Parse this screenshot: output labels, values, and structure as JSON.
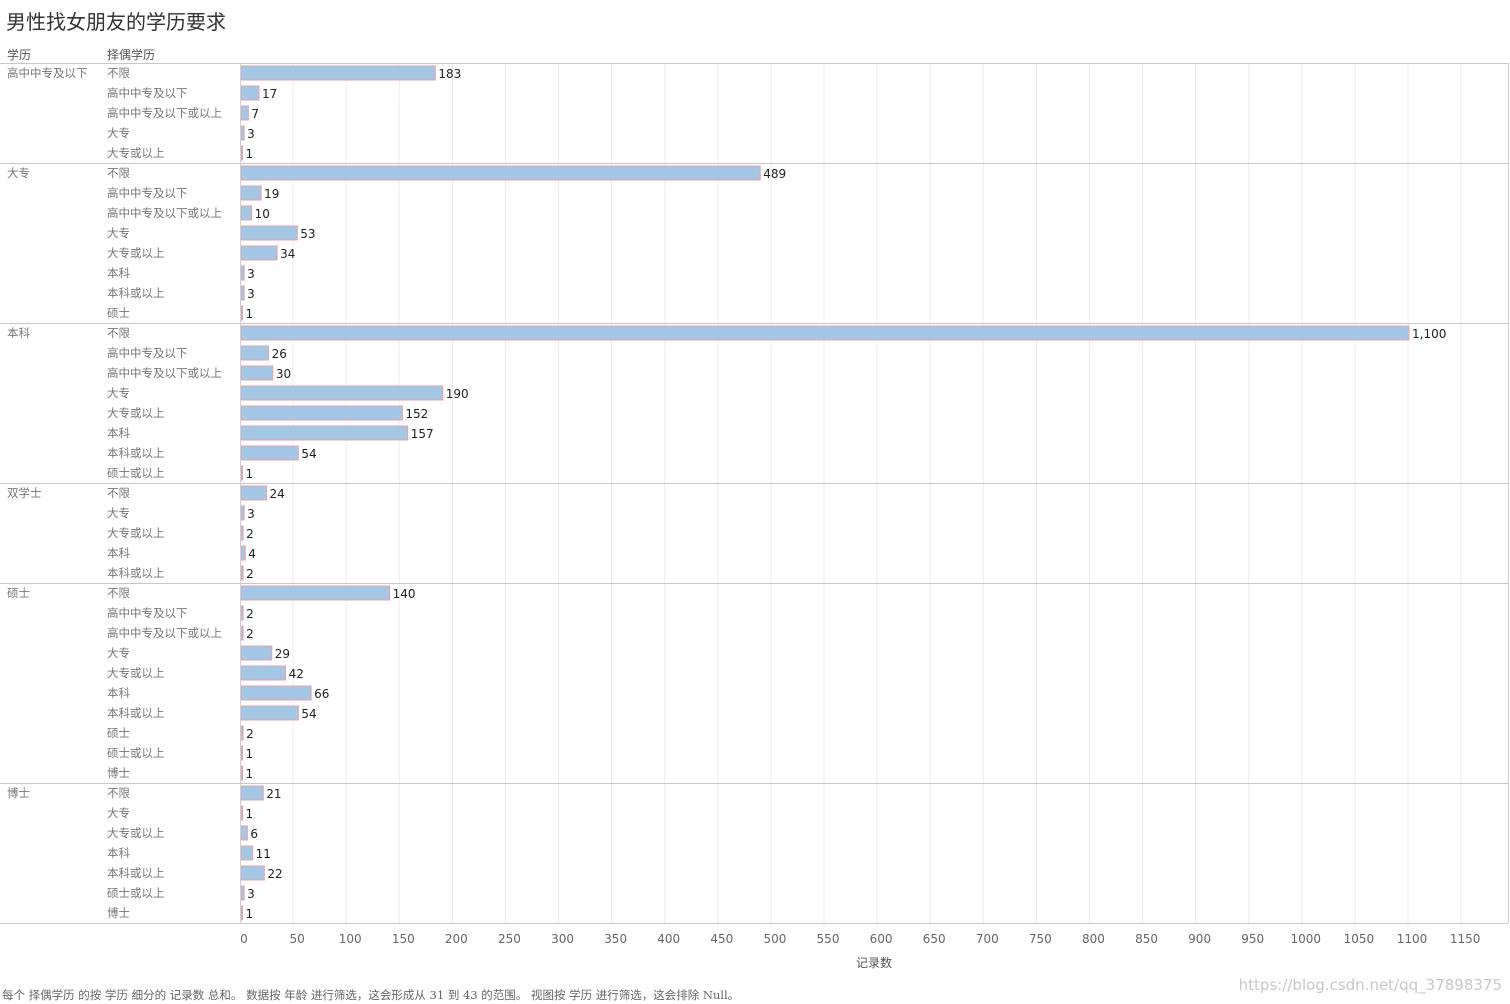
{
  "title": "男性找女朋友的学历要求",
  "headers": {
    "education": "学历",
    "spouse_education": "择偶学历"
  },
  "footnote": "每个 择偶学历 的按 学历 细分的 记录数 总和。 数据按 年龄 进行筛选，这会形成从 31 到 43 的范围。 视图按 学历 进行筛选，这会排除 Null。",
  "watermark": "https://blog.csdn.net/qq_37898375",
  "colors": {
    "bar_fill": "#a3c8e6",
    "bar_stroke": "#e8a0ac",
    "gridline": "#ececec",
    "separator": "#c8c8c8"
  },
  "chart_data": {
    "type": "bar",
    "orientation": "horizontal",
    "title": "男性找女朋友的学历要求",
    "xlabel": "记录数",
    "xlim": [
      0,
      1175
    ],
    "xticks": [
      0,
      50,
      100,
      150,
      200,
      250,
      300,
      350,
      400,
      450,
      500,
      550,
      600,
      650,
      700,
      750,
      800,
      850,
      900,
      950,
      1000,
      1050,
      1100,
      1150
    ],
    "grid": true,
    "groups": [
      {
        "name": "高中中专及以下",
        "rows": [
          {
            "label": "不限",
            "value": 183,
            "display": "183"
          },
          {
            "label": "高中中专及以下",
            "value": 17,
            "display": "17"
          },
          {
            "label": "高中中专及以下或以上",
            "value": 7,
            "display": "7"
          },
          {
            "label": "大专",
            "value": 3,
            "display": "3"
          },
          {
            "label": "大专或以上",
            "value": 1,
            "display": "1"
          }
        ]
      },
      {
        "name": "大专",
        "rows": [
          {
            "label": "不限",
            "value": 489,
            "display": "489"
          },
          {
            "label": "高中中专及以下",
            "value": 19,
            "display": "19"
          },
          {
            "label": "高中中专及以下或以上",
            "value": 10,
            "display": "10"
          },
          {
            "label": "大专",
            "value": 53,
            "display": "53"
          },
          {
            "label": "大专或以上",
            "value": 34,
            "display": "34"
          },
          {
            "label": "本科",
            "value": 3,
            "display": "3"
          },
          {
            "label": "本科或以上",
            "value": 3,
            "display": "3"
          },
          {
            "label": "硕士",
            "value": 1,
            "display": "1"
          }
        ]
      },
      {
        "name": "本科",
        "rows": [
          {
            "label": "不限",
            "value": 1100,
            "display": "1,100"
          },
          {
            "label": "高中中专及以下",
            "value": 26,
            "display": "26"
          },
          {
            "label": "高中中专及以下或以上",
            "value": 30,
            "display": "30"
          },
          {
            "label": "大专",
            "value": 190,
            "display": "190"
          },
          {
            "label": "大专或以上",
            "value": 152,
            "display": "152"
          },
          {
            "label": "本科",
            "value": 157,
            "display": "157"
          },
          {
            "label": "本科或以上",
            "value": 54,
            "display": "54"
          },
          {
            "label": "硕士或以上",
            "value": 1,
            "display": "1"
          }
        ]
      },
      {
        "name": "双学士",
        "rows": [
          {
            "label": "不限",
            "value": 24,
            "display": "24"
          },
          {
            "label": "大专",
            "value": 3,
            "display": "3"
          },
          {
            "label": "大专或以上",
            "value": 2,
            "display": "2"
          },
          {
            "label": "本科",
            "value": 4,
            "display": "4"
          },
          {
            "label": "本科或以上",
            "value": 2,
            "display": "2"
          }
        ]
      },
      {
        "name": "硕士",
        "rows": [
          {
            "label": "不限",
            "value": 140,
            "display": "140"
          },
          {
            "label": "高中中专及以下",
            "value": 2,
            "display": "2"
          },
          {
            "label": "高中中专及以下或以上",
            "value": 2,
            "display": "2"
          },
          {
            "label": "大专",
            "value": 29,
            "display": "29"
          },
          {
            "label": "大专或以上",
            "value": 42,
            "display": "42"
          },
          {
            "label": "本科",
            "value": 66,
            "display": "66"
          },
          {
            "label": "本科或以上",
            "value": 54,
            "display": "54"
          },
          {
            "label": "硕士",
            "value": 2,
            "display": "2"
          },
          {
            "label": "硕士或以上",
            "value": 1,
            "display": "1"
          },
          {
            "label": "博士",
            "value": 1,
            "display": "1"
          }
        ]
      },
      {
        "name": "博士",
        "rows": [
          {
            "label": "不限",
            "value": 21,
            "display": "21"
          },
          {
            "label": "大专",
            "value": 1,
            "display": "1"
          },
          {
            "label": "大专或以上",
            "value": 6,
            "display": "6"
          },
          {
            "label": "本科",
            "value": 11,
            "display": "11"
          },
          {
            "label": "本科或以上",
            "value": 22,
            "display": "22"
          },
          {
            "label": "硕士或以上",
            "value": 3,
            "display": "3"
          },
          {
            "label": "博士",
            "value": 1,
            "display": "1"
          }
        ]
      }
    ]
  }
}
